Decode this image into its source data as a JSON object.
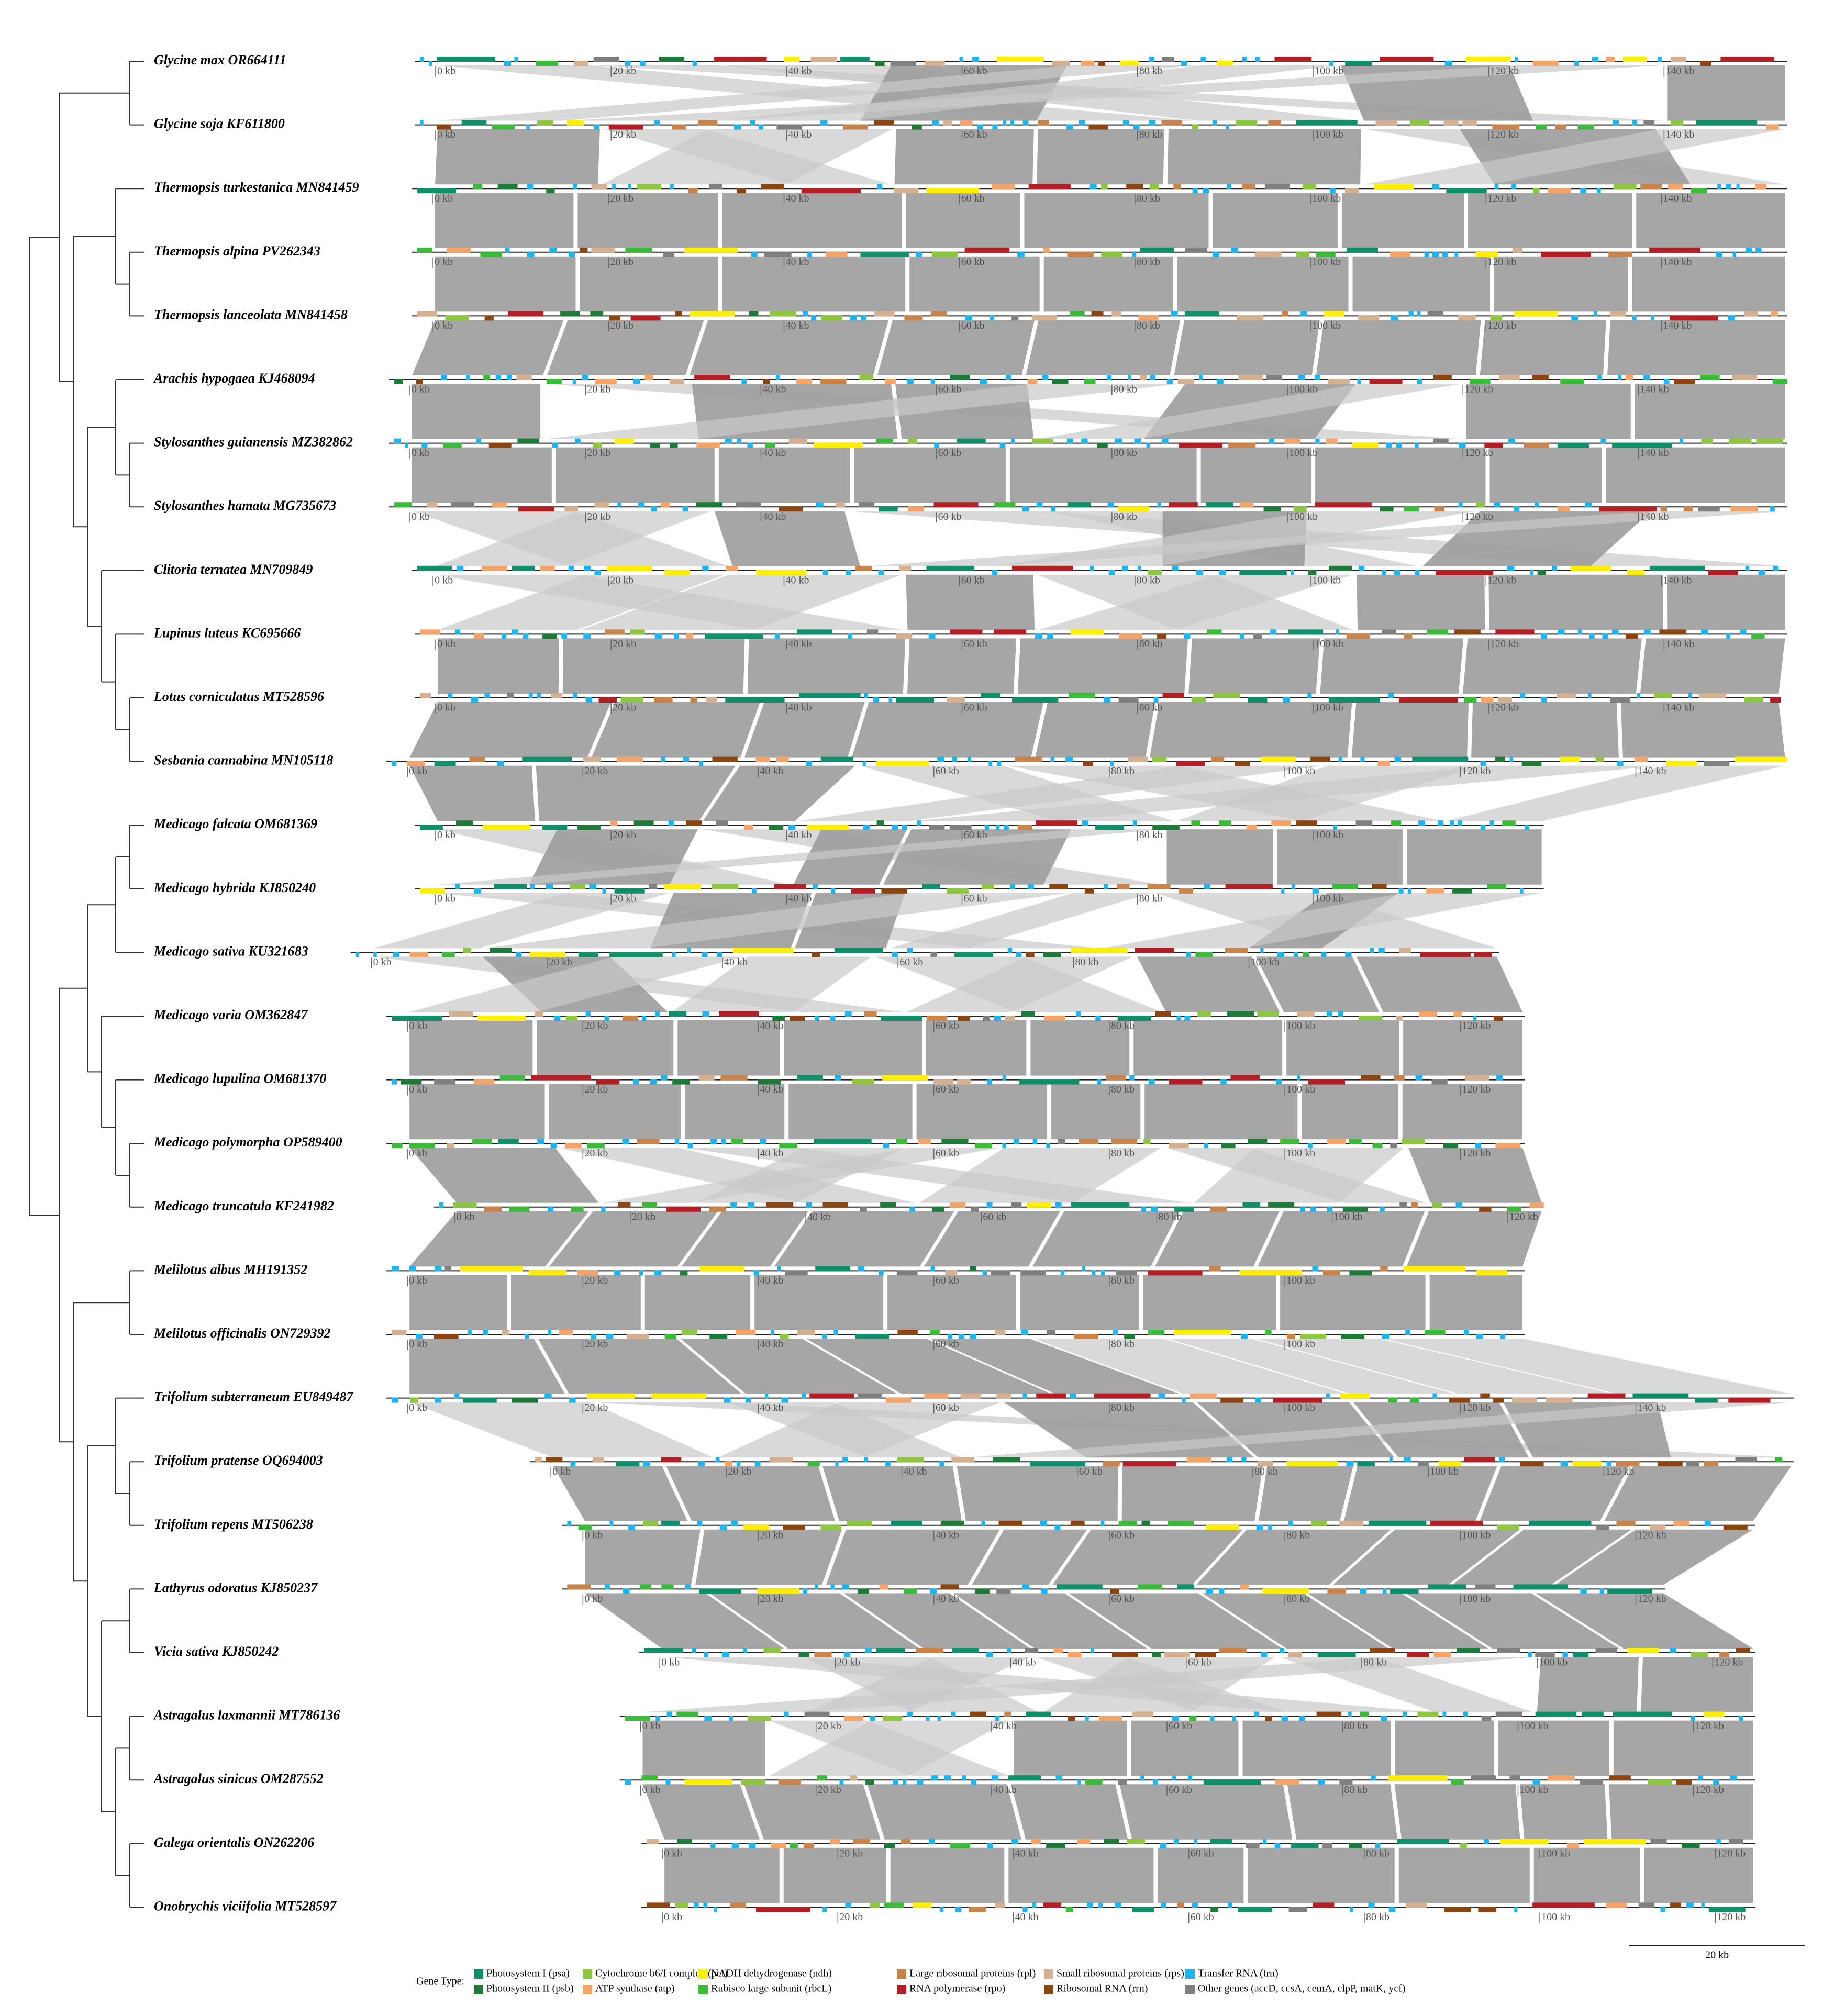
{
  "tracks": [
    {
      "name": "Glycine max OR664111",
      "ticks": [
        "0 kb",
        "20 kb",
        "40 kb",
        "60 kb",
        "80 kb",
        "100 kb",
        "120 kb",
        "140 kb"
      ]
    },
    {
      "name": "Glycine soja KF611800",
      "ticks": [
        "0 kb",
        "20 kb",
        "40 kb",
        "60 kb",
        "80 kb",
        "100 kb",
        "120 kb",
        "140 kb"
      ]
    },
    {
      "name": "Thermopsis turkestanica MN841459",
      "ticks": [
        "0 kb",
        "20 kb",
        "40 kb",
        "60 kb",
        "80 kb",
        "100 kb",
        "120 kb",
        "140 kb"
      ]
    },
    {
      "name": "Thermopsis alpina PV262343",
      "ticks": [
        "0 kb",
        "20 kb",
        "40 kb",
        "60 kb",
        "80 kb",
        "100 kb",
        "120 kb",
        "140 kb"
      ]
    },
    {
      "name": "Thermopsis lanceolata MN841458",
      "ticks": [
        "0 kb",
        "20 kb",
        "40 kb",
        "60 kb",
        "80 kb",
        "100 kb",
        "120 kb",
        "140 kb"
      ]
    },
    {
      "name": "Arachis hypogaea KJ468094",
      "ticks": [
        "0 kb",
        "20 kb",
        "40 kb",
        "60 kb",
        "80 kb",
        "100 kb",
        "120 kb",
        "140 kb"
      ]
    },
    {
      "name": "Stylosanthes guianensis MZ382862",
      "ticks": [
        "0 kb",
        "20 kb",
        "40 kb",
        "60 kb",
        "80 kb",
        "100 kb",
        "120 kb",
        "140 kb"
      ]
    },
    {
      "name": "Stylosanthes hamata MG735673",
      "ticks": [
        "0 kb",
        "20 kb",
        "40 kb",
        "60 kb",
        "80 kb",
        "100 kb",
        "120 kb",
        "140 kb"
      ]
    },
    {
      "name": "Clitoria ternatea MN709849",
      "ticks": [
        "0 kb",
        "20 kb",
        "40 kb",
        "60 kb",
        "80 kb",
        "100 kb",
        "120 kb",
        "140 kb"
      ]
    },
    {
      "name": "Lupinus luteus KC695666",
      "ticks": [
        "0 kb",
        "20 kb",
        "40 kb",
        "60 kb",
        "80 kb",
        "100 kb",
        "120 kb",
        "140 kb"
      ]
    },
    {
      "name": "Lotus corniculatus MT528596",
      "ticks": [
        "0 kb",
        "20 kb",
        "40 kb",
        "60 kb",
        "80 kb",
        "100 kb",
        "120 kb",
        "140 kb"
      ]
    },
    {
      "name": "Sesbania cannabina MN105118",
      "ticks": [
        "0 kb",
        "20 kb",
        "40 kb",
        "60 kb",
        "80 kb",
        "100 kb",
        "120 kb",
        "140 kb"
      ]
    },
    {
      "name": "Medicago falcata OM681369",
      "ticks": [
        "0 kb",
        "20 kb",
        "40 kb",
        "60 kb",
        "80 kb",
        "100 kb"
      ]
    },
    {
      "name": "Medicago hybrida KJ850240",
      "ticks": [
        "0 kb",
        "20 kb",
        "40 kb",
        "60 kb",
        "80 kb",
        "100 kb"
      ]
    },
    {
      "name": "Medicago sativa KU321683",
      "ticks": [
        "0 kb",
        "20 kb",
        "40 kb",
        "60 kb",
        "80 kb",
        "100 kb"
      ]
    },
    {
      "name": "Medicago varia OM362847",
      "ticks": [
        "0 kb",
        "20 kb",
        "40 kb",
        "60 kb",
        "80 kb",
        "100 kb",
        "120 kb"
      ]
    },
    {
      "name": "Medicago lupulina OM681370",
      "ticks": [
        "0 kb",
        "20 kb",
        "40 kb",
        "60 kb",
        "80 kb",
        "100 kb",
        "120 kb"
      ]
    },
    {
      "name": "Medicago polymorpha OP589400",
      "ticks": [
        "0 kb",
        "20 kb",
        "40 kb",
        "60 kb",
        "80 kb",
        "100 kb",
        "120 kb"
      ]
    },
    {
      "name": "Medicago truncatula KF241982",
      "ticks": [
        "0 kb",
        "20 kb",
        "40 kb",
        "60 kb",
        "80 kb",
        "100 kb",
        "120 kb"
      ]
    },
    {
      "name": "Melilotus albus MH191352",
      "ticks": [
        "0 kb",
        "20 kb",
        "40 kb",
        "60 kb",
        "80 kb",
        "100 kb"
      ]
    },
    {
      "name": "Melilotus officinalis ON729392",
      "ticks": [
        "0 kb",
        "20 kb",
        "40 kb",
        "60 kb",
        "80 kb",
        "100 kb"
      ]
    },
    {
      "name": "Trifolium subterraneum EU849487",
      "ticks": [
        "0 kb",
        "20 kb",
        "40 kb",
        "60 kb",
        "80 kb",
        "100 kb",
        "120 kb",
        "140 kb"
      ]
    },
    {
      "name": "Trifolium pratense OQ694003",
      "ticks": [
        "0 kb",
        "20 kb",
        "40 kb",
        "60 kb",
        "80 kb",
        "100 kb",
        "120 kb"
      ]
    },
    {
      "name": "Trifolium repens MT506238",
      "ticks": [
        "0 kb",
        "20 kb",
        "40 kb",
        "60 kb",
        "80 kb",
        "100 kb",
        "120 kb"
      ]
    },
    {
      "name": "Lathyrus odoratus KJ850237",
      "ticks": [
        "0 kb",
        "20 kb",
        "40 kb",
        "60 kb",
        "80 kb",
        "100 kb",
        "120 kb"
      ]
    },
    {
      "name": "Vicia sativa KJ850242",
      "ticks": [
        "0 kb",
        "20 kb",
        "40 kb",
        "60 kb",
        "80 kb",
        "100 kb",
        "120 kb"
      ]
    },
    {
      "name": "Astragalus laxmannii MT786136",
      "ticks": [
        "0 kb",
        "20 kb",
        "40 kb",
        "60 kb",
        "80 kb",
        "100 kb",
        "120 kb"
      ]
    },
    {
      "name": "Astragalus sinicus OM287552",
      "ticks": [
        "0 kb",
        "20 kb",
        "40 kb",
        "60 kb",
        "80 kb",
        "100 kb",
        "120 kb"
      ]
    },
    {
      "name": "Galega orientalis ON262206",
      "ticks": [
        "0 kb",
        "20 kb",
        "40 kb",
        "60 kb",
        "80 kb",
        "100 kb",
        "120 kb"
      ]
    },
    {
      "name": "Onobrychis viciifolia MT528597",
      "ticks": [
        "0 kb",
        "20 kb",
        "40 kb",
        "60 kb",
        "80 kb",
        "100 kb",
        "120 kb"
      ]
    }
  ],
  "scale_bar": "20 kb",
  "legend": {
    "title": "Gene Type:",
    "items": [
      {
        "label": "Photosystem I (psa)",
        "color": "#10906a"
      },
      {
        "label": "Photosystem II (psb)",
        "color": "#1f7a3a"
      },
      {
        "label": "Cytochrome b6/f complex (pet)",
        "color": "#8dc63f"
      },
      {
        "label": "ATP synthase (atp)",
        "color": "#f4a468"
      },
      {
        "label": "NADH dehydrogenase (ndh)",
        "color": "#ffee00"
      },
      {
        "label": "Rubisco large subunit (rbcL)",
        "color": "#3cba3c"
      },
      {
        "label": "Large ribosomal proteins (rpl)",
        "color": "#c8844a"
      },
      {
        "label": "RNA polymerase (rpo)",
        "color": "#b21f24"
      },
      {
        "label": "Small ribosomal proteins (rps)",
        "color": "#d4b090"
      },
      {
        "label": "Ribosomal RNA (rrn)",
        "color": "#8b4513"
      },
      {
        "label": "Transfer RNA (trn)",
        "color": "#1eb4f0"
      },
      {
        "label": "Other genes (accD, ccsA, cemA, clpP, matK, ycf)",
        "color": "#808080"
      }
    ]
  }
}
